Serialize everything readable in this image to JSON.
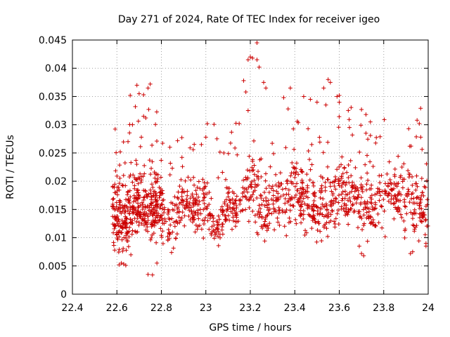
{
  "chart_data": {
    "type": "scatter",
    "title": "Day 271 of 2024, Rate Of TEC Index for receiver igeo",
    "xlabel": "GPS time / hours",
    "ylabel": "ROTI / TECUs",
    "xlim": [
      22.4,
      24
    ],
    "ylim": [
      0,
      0.045
    ],
    "xticks": [
      "22.4",
      "22.6",
      "22.8",
      "23",
      "23.2",
      "23.4",
      "23.6",
      "23.8",
      "24"
    ],
    "yticks": [
      "0",
      "0.005",
      "0.01",
      "0.015",
      "0.02",
      "0.025",
      "0.03",
      "0.035",
      "0.04",
      "0.045"
    ],
    "grid": true,
    "marker": "+",
    "color": "#cc0000",
    "x_range_of_points": [
      22.58,
      24.0
    ],
    "bands": [
      {
        "x_start": 22.58,
        "x_end": 22.8,
        "center": 0.0135,
        "spread": 0.004
      },
      {
        "x_start": 22.58,
        "x_end": 22.8,
        "center": 0.0165,
        "spread": 0.005
      },
      {
        "x_start": 22.8,
        "x_end": 23.15,
        "center": 0.015,
        "spread": 0.004
      },
      {
        "x_start": 23.15,
        "x_end": 23.5,
        "center": 0.0165,
        "spread": 0.005
      },
      {
        "x_start": 23.5,
        "x_end": 24.0,
        "center": 0.017,
        "spread": 0.005
      }
    ],
    "outliers": [
      {
        "x": 22.61,
        "y": 0.0052
      },
      {
        "x": 22.62,
        "y": 0.0055
      },
      {
        "x": 22.64,
        "y": 0.0051
      },
      {
        "x": 22.69,
        "y": 0.037
      },
      {
        "x": 22.7,
        "y": 0.0355
      },
      {
        "x": 22.72,
        "y": 0.0353
      },
      {
        "x": 22.66,
        "y": 0.0352
      },
      {
        "x": 22.74,
        "y": 0.0365
      },
      {
        "x": 22.75,
        "y": 0.0372
      },
      {
        "x": 22.72,
        "y": 0.0315
      },
      {
        "x": 22.73,
        "y": 0.0312
      },
      {
        "x": 22.67,
        "y": 0.03
      },
      {
        "x": 22.74,
        "y": 0.0035
      },
      {
        "x": 22.76,
        "y": 0.0034
      },
      {
        "x": 22.78,
        "y": 0.0055
      },
      {
        "x": 22.65,
        "y": 0.027
      },
      {
        "x": 22.71,
        "y": 0.0278
      },
      {
        "x": 23.17,
        "y": 0.0378
      },
      {
        "x": 23.18,
        "y": 0.0358
      },
      {
        "x": 23.19,
        "y": 0.0415
      },
      {
        "x": 23.2,
        "y": 0.042
      },
      {
        "x": 23.21,
        "y": 0.0418
      },
      {
        "x": 23.23,
        "y": 0.0415
      },
      {
        "x": 23.23,
        "y": 0.0445
      },
      {
        "x": 23.24,
        "y": 0.0402
      },
      {
        "x": 23.26,
        "y": 0.0375
      },
      {
        "x": 23.27,
        "y": 0.0365
      },
      {
        "x": 23.19,
        "y": 0.0325
      },
      {
        "x": 23.15,
        "y": 0.0302
      },
      {
        "x": 23.05,
        "y": 0.0275
      },
      {
        "x": 23.0,
        "y": 0.0278
      },
      {
        "x": 22.98,
        "y": 0.0265
      },
      {
        "x": 23.35,
        "y": 0.0348
      },
      {
        "x": 23.37,
        "y": 0.0328
      },
      {
        "x": 23.38,
        "y": 0.0365
      },
      {
        "x": 23.44,
        "y": 0.035
      },
      {
        "x": 23.47,
        "y": 0.0345
      },
      {
        "x": 23.5,
        "y": 0.034
      },
      {
        "x": 23.53,
        "y": 0.0365
      },
      {
        "x": 23.55,
        "y": 0.038
      },
      {
        "x": 23.56,
        "y": 0.0375
      },
      {
        "x": 23.59,
        "y": 0.035
      },
      {
        "x": 23.6,
        "y": 0.0352
      },
      {
        "x": 23.54,
        "y": 0.0335
      },
      {
        "x": 23.7,
        "y": 0.0327
      },
      {
        "x": 23.72,
        "y": 0.0318
      },
      {
        "x": 23.74,
        "y": 0.0305
      },
      {
        "x": 23.95,
        "y": 0.0308
      },
      {
        "x": 23.96,
        "y": 0.0302
      },
      {
        "x": 23.72,
        "y": 0.0285
      },
      {
        "x": 23.7,
        "y": 0.0072
      },
      {
        "x": 23.71,
        "y": 0.0068
      },
      {
        "x": 23.69,
        "y": 0.0085
      },
      {
        "x": 23.92,
        "y": 0.0072
      },
      {
        "x": 23.93,
        "y": 0.0075
      },
      {
        "x": 23.99,
        "y": 0.0085
      },
      {
        "x": 23.99,
        "y": 0.009
      },
      {
        "x": 22.59,
        "y": 0.0078
      }
    ]
  }
}
